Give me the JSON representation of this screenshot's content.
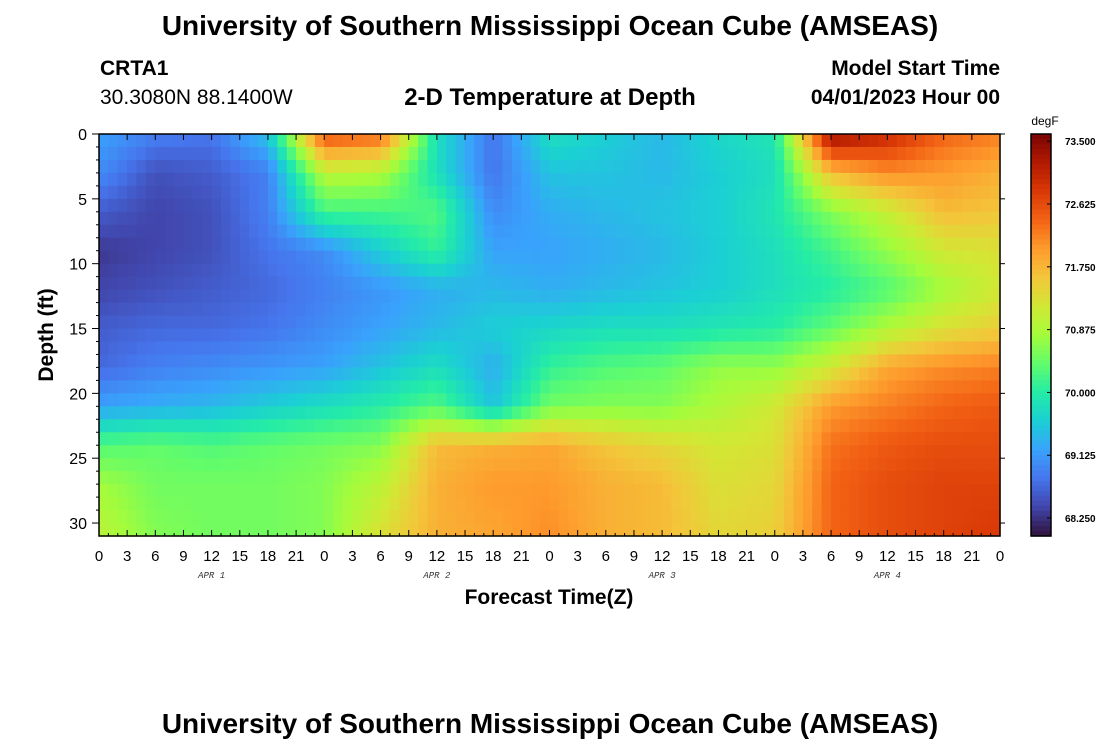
{
  "header": {
    "title": "University of Southern Mississippi Ocean Cube (AMSEAS)",
    "station": "CRTA1",
    "coords": "30.3080N  88.1400W",
    "subtitle": "2-D Temperature at Depth",
    "start_label": "Model Start Time",
    "start_value": "04/01/2023 Hour 00"
  },
  "footer": {
    "title": "University of Southern Mississippi Ocean Cube (AMSEAS)"
  },
  "chart_data": {
    "type": "heatmap",
    "title": "2-D Temperature at Depth",
    "xlabel": "Forecast Time(Z)",
    "ylabel": "Depth (ft)",
    "colorbar_label": "degF",
    "x_tick_labels": [
      "0",
      "3",
      "6",
      "9",
      "12",
      "15",
      "18",
      "21",
      "0",
      "3",
      "6",
      "9",
      "12",
      "15",
      "18",
      "21",
      "0",
      "3",
      "6",
      "9",
      "12",
      "15",
      "18",
      "21",
      "0",
      "3",
      "6",
      "9",
      "12",
      "15",
      "18",
      "21",
      "0"
    ],
    "day_labels": [
      "APR 1",
      "APR 2",
      "APR 3",
      "APR 4"
    ],
    "y_ticks": [
      0,
      5,
      10,
      15,
      20,
      25,
      30
    ],
    "ylim": [
      0,
      31
    ],
    "xlim": [
      0,
      96
    ],
    "zlim": [
      68.0,
      73.6
    ],
    "colorbar_ticks": [
      "68.250",
      "69.125",
      "70.000",
      "70.875",
      "71.750",
      "72.625",
      "73.500"
    ],
    "colormap": [
      "#30123b",
      "#4145ab",
      "#4675ed",
      "#39a2fc",
      "#1bcfd4",
      "#24eca6",
      "#61fc6c",
      "#a4fc3b",
      "#d1e834",
      "#f3c63a",
      "#fe9b2d",
      "#f36315",
      "#d93806",
      "#b11901",
      "#7a0402"
    ],
    "grid": false,
    "legend": "colorbar-right",
    "depth_values_ft": [
      0,
      3,
      6,
      9,
      12,
      15,
      18,
      21,
      24,
      27,
      31
    ],
    "time_hours": [
      0,
      6,
      12,
      18,
      24,
      30,
      36,
      42,
      48,
      54,
      60,
      66,
      72,
      78,
      84,
      90,
      96
    ],
    "temperature_degF": [
      [
        69.2,
        68.9,
        68.8,
        69.5,
        72.6,
        72.4,
        69.8,
        68.8,
        69.8,
        69.6,
        69.4,
        69.7,
        69.9,
        73.4,
        73.0,
        72.4,
        72.2
      ],
      [
        69.0,
        68.5,
        68.6,
        68.9,
        71.0,
        70.9,
        69.8,
        68.8,
        69.5,
        69.5,
        69.4,
        69.6,
        69.8,
        71.7,
        72.1,
        72.0,
        71.8
      ],
      [
        68.6,
        68.4,
        68.5,
        68.9,
        70.2,
        70.2,
        70.3,
        69.0,
        69.3,
        69.4,
        69.5,
        69.6,
        69.9,
        70.6,
        71.1,
        71.7,
        71.6
      ],
      [
        68.3,
        68.4,
        68.5,
        68.8,
        69.0,
        69.6,
        70.1,
        69.2,
        69.2,
        69.3,
        69.4,
        69.6,
        69.8,
        70.2,
        70.7,
        71.2,
        71.3
      ],
      [
        68.4,
        68.5,
        68.6,
        68.7,
        68.9,
        69.1,
        69.3,
        69.4,
        69.3,
        69.4,
        69.5,
        69.6,
        69.8,
        70.0,
        70.3,
        70.8,
        71.2
      ],
      [
        68.6,
        68.7,
        68.7,
        68.8,
        69.0,
        69.2,
        69.4,
        69.6,
        69.7,
        69.8,
        69.8,
        69.9,
        70.0,
        70.4,
        70.9,
        71.3,
        71.5
      ],
      [
        68.7,
        68.9,
        69.0,
        69.1,
        69.2,
        69.5,
        69.8,
        69.3,
        70.1,
        70.3,
        70.4,
        70.7,
        70.7,
        71.2,
        71.9,
        72.1,
        72.2
      ],
      [
        69.2,
        69.3,
        69.4,
        69.6,
        69.8,
        70.0,
        70.3,
        69.5,
        70.5,
        70.6,
        70.6,
        70.9,
        71.2,
        72.0,
        72.2,
        72.4,
        72.5
      ],
      [
        70.3,
        70.4,
        70.3,
        70.4,
        70.5,
        70.6,
        71.7,
        71.8,
        71.9,
        71.6,
        71.4,
        71.2,
        71.3,
        72.3,
        72.5,
        72.6,
        72.6
      ],
      [
        70.8,
        70.5,
        70.5,
        70.5,
        70.6,
        71.0,
        71.8,
        72.0,
        72.0,
        71.8,
        71.7,
        71.3,
        71.4,
        72.4,
        72.6,
        72.7,
        72.7
      ],
      [
        71.0,
        70.6,
        70.5,
        70.5,
        70.6,
        71.3,
        71.8,
        71.9,
        72.1,
        71.8,
        71.7,
        71.4,
        71.5,
        72.4,
        72.6,
        72.7,
        72.8
      ]
    ]
  }
}
